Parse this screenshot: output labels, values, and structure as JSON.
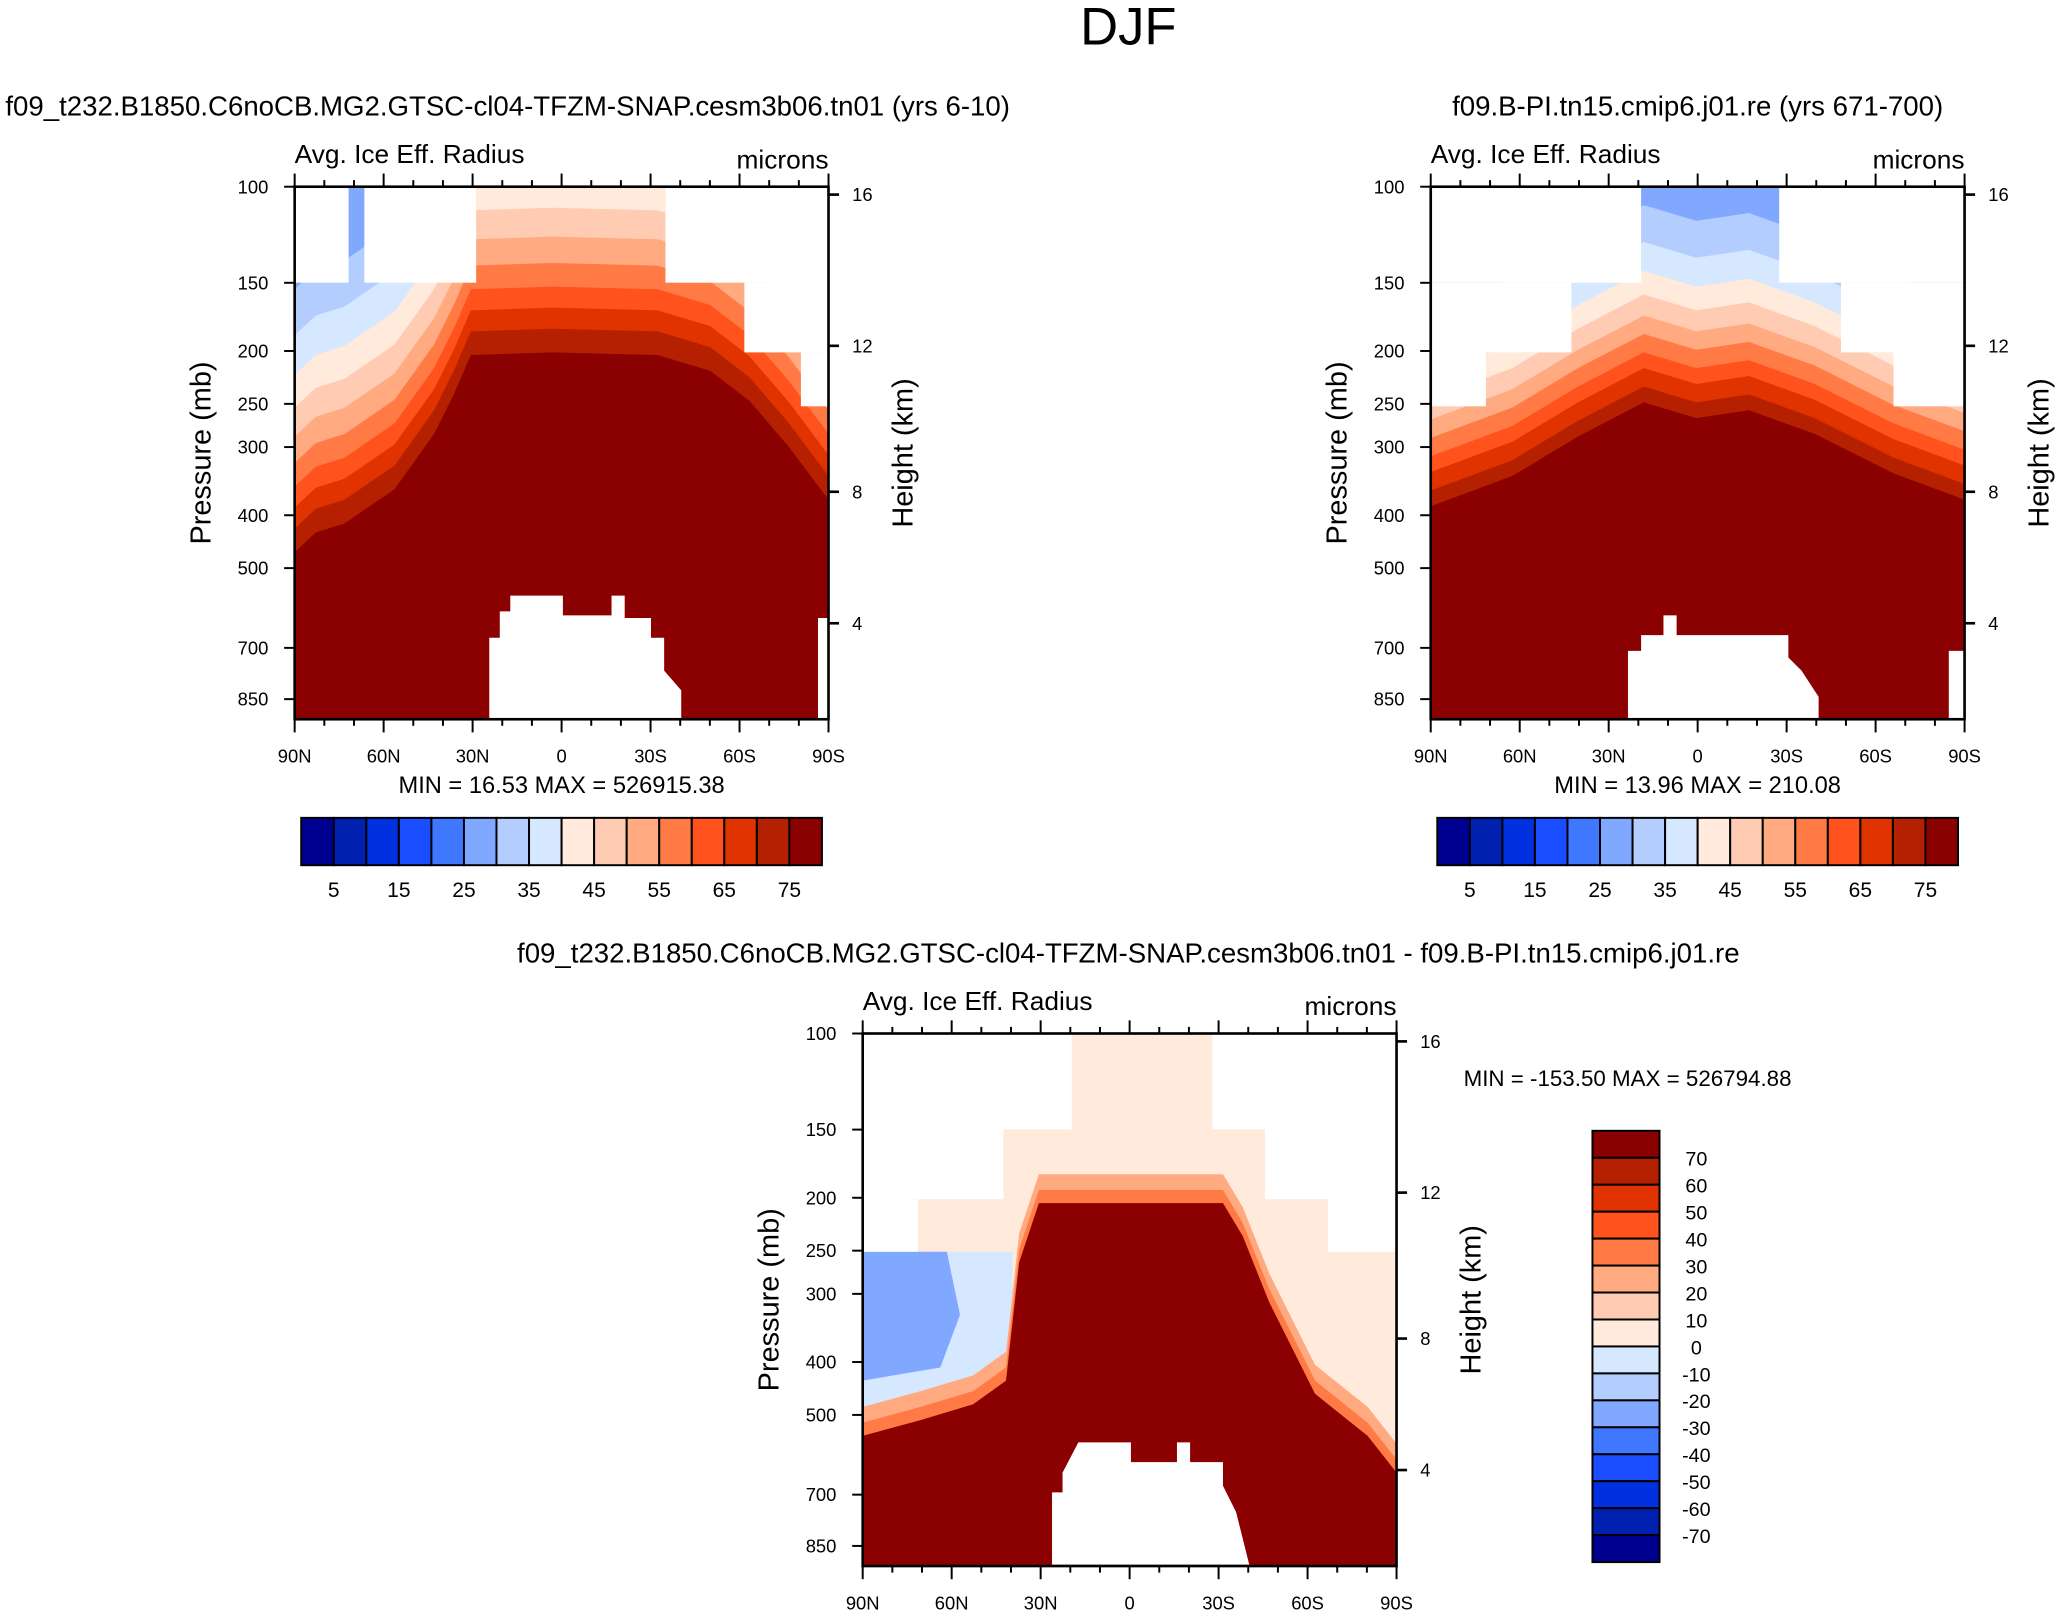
{
  "title": "DJF",
  "chart_data": {
    "type": "heatmap",
    "title": "DJF",
    "palette": [
      "#000090",
      "#0020b0",
      "#0030e0",
      "#1a4dff",
      "#3f77ff",
      "#80a8ff",
      "#b3cdff",
      "#d6e8ff",
      "#ffeadb",
      "#ffcbb2",
      "#ffaa80",
      "#ff7a45",
      "#ff521c",
      "#e03300",
      "#b52000",
      "#8b0000"
    ],
    "panels": [
      {
        "title": "f09_t232.B1850.C6noCB.MG2.GTSC-cl04-TFZM-SNAP.cesm3b06.tn01 (yrs 6-10)",
        "left_string": "Avg. Ice Eff. Radius",
        "right_string": "microns",
        "ylabel": "Pressure (mb)",
        "y2label": "Height (km)",
        "x_ticks": [
          "90N",
          "60N",
          "30N",
          "0",
          "30S",
          "60S",
          "90S"
        ],
        "p_ticks": [
          "100",
          "150",
          "200",
          "250",
          "300",
          "400",
          "500",
          "700",
          "850"
        ],
        "h_ticks": [
          "16",
          "12",
          "8",
          "4"
        ],
        "min_max": "MIN =  16.53  MAX = 526915.38",
        "min": 16.53,
        "max": 526915.38,
        "colorbar_labels": [
          "5",
          "15",
          "25",
          "35",
          "45",
          "55",
          "65",
          "75"
        ]
      },
      {
        "title": "f09.B-PI.tn15.cmip6.j01.re (yrs 671-700)",
        "left_string": "Avg. Ice Eff. Radius",
        "right_string": "microns",
        "ylabel": "Pressure (mb)",
        "y2label": "Height (km)",
        "x_ticks": [
          "90N",
          "60N",
          "30N",
          "0",
          "30S",
          "60S",
          "90S"
        ],
        "p_ticks": [
          "100",
          "150",
          "200",
          "250",
          "300",
          "400",
          "500",
          "700",
          "850"
        ],
        "h_ticks": [
          "16",
          "12",
          "8",
          "4"
        ],
        "min_max": "MIN =  13.96  MAX = 210.08",
        "min": 13.96,
        "max": 210.08,
        "colorbar_labels": [
          "5",
          "15",
          "25",
          "35",
          "45",
          "55",
          "65",
          "75"
        ]
      },
      {
        "title": "f09_t232.B1850.C6noCB.MG2.GTSC-cl04-TFZM-SNAP.cesm3b06.tn01 - f09.B-PI.tn15.cmip6.j01.re",
        "left_string": "Avg. Ice Eff. Radius",
        "right_string": "microns",
        "ylabel": "Pressure (mb)",
        "y2label": "Height (km)",
        "x_ticks": [
          "90N",
          "60N",
          "30N",
          "0",
          "30S",
          "60S",
          "90S"
        ],
        "p_ticks": [
          "100",
          "150",
          "200",
          "250",
          "300",
          "400",
          "500",
          "700",
          "850"
        ],
        "h_ticks": [
          "16",
          "12",
          "8",
          "4"
        ],
        "min_max": "MIN = -153.50  MAX = 526794.88",
        "min": -153.5,
        "max": 526794.88,
        "colorbar_labels": [
          "70",
          "60",
          "50",
          "40",
          "30",
          "20",
          "10",
          "0",
          "-10",
          "-20",
          "-30",
          "-40",
          "-50",
          "-60",
          "-70"
        ]
      }
    ]
  }
}
